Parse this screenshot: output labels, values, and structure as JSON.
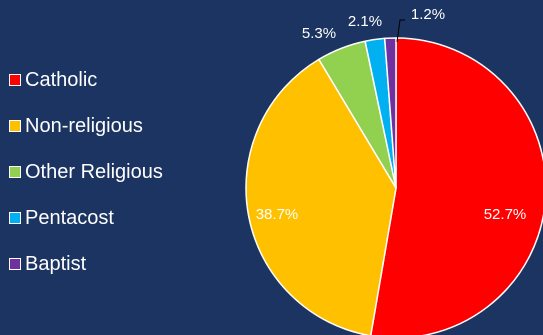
{
  "chart_data": {
    "type": "pie",
    "categories": [
      "Catholic",
      "Non-religious",
      "Other Religious",
      "Pentacost",
      "Baptist"
    ],
    "values": [
      52.7,
      38.7,
      5.3,
      2.1,
      1.2
    ],
    "value_labels": [
      "52.7%",
      "38.7%",
      "5.3%",
      "2.1%",
      "1.2%"
    ],
    "colors": [
      "#ff0000",
      "#ffc000",
      "#92d050",
      "#00b0f0",
      "#7030a0"
    ],
    "legend_position": "left",
    "label_positions": [
      "inside",
      "inside",
      "outside",
      "outside",
      "outside-with-leader"
    ],
    "background": "#1c3461"
  }
}
